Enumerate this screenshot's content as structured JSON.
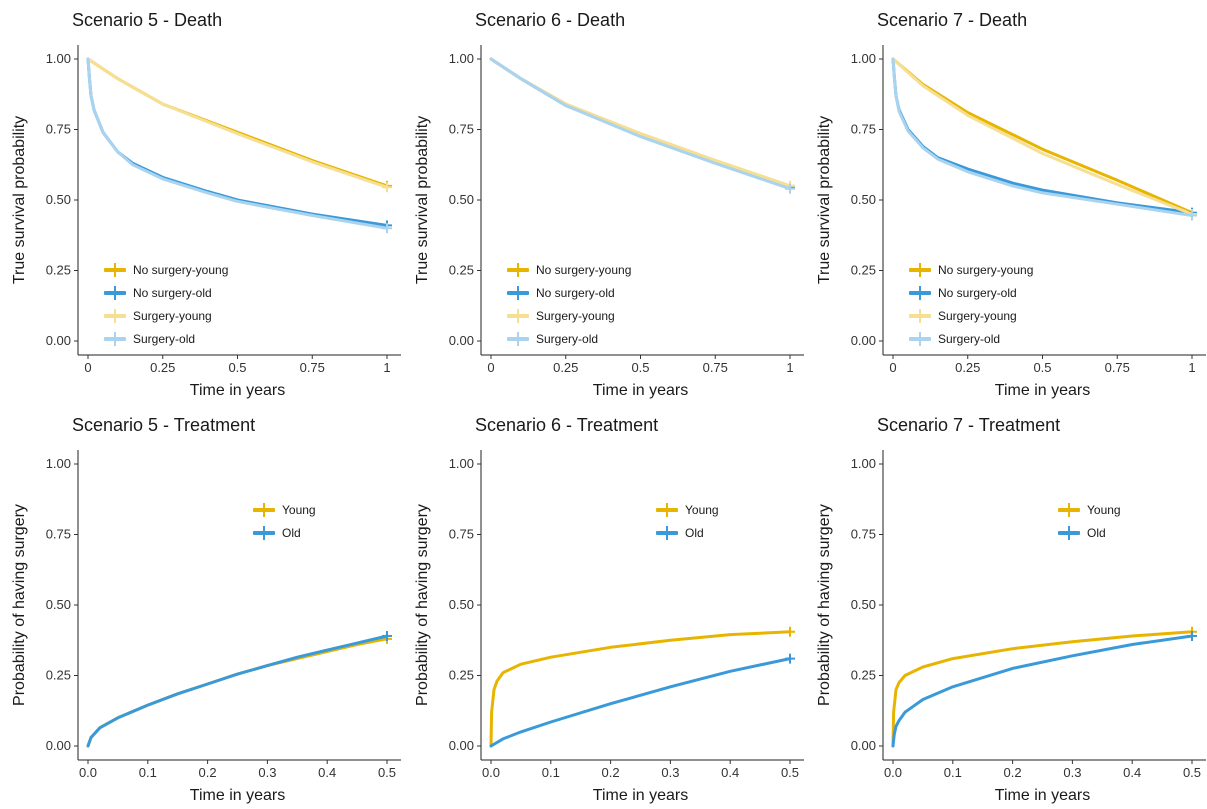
{
  "colors": {
    "no_surgery_young": "#E7B400",
    "no_surgery_old": "#3A9AD9",
    "surgery_young": "#F6DF93",
    "surgery_old": "#A9D3EE",
    "young": "#E7B400",
    "old": "#3A9AD9"
  },
  "chart_data": [
    {
      "type": "line",
      "title": "Scenario 5 - Death",
      "xlabel": "Time in years",
      "ylabel": "True survival probability",
      "xlim": [
        0,
        1
      ],
      "ylim": [
        0,
        1
      ],
      "xticks": [
        0,
        0.25,
        0.5,
        0.75,
        1
      ],
      "xtick_labels": [
        "0",
        "0.25",
        "0.5",
        "0.75",
        "1"
      ],
      "yticks": [
        0,
        0.25,
        0.5,
        0.75,
        1
      ],
      "ytick_labels": [
        "0.00",
        "0.25",
        "0.50",
        "0.75",
        "1.00"
      ],
      "legend_position": "bottom-left",
      "grid": false,
      "series": [
        {
          "name": "No surgery-young",
          "color_key": "no_surgery_young",
          "x": [
            0,
            0.1,
            0.25,
            0.5,
            0.75,
            1
          ],
          "y": [
            1.0,
            0.93,
            0.84,
            0.74,
            0.64,
            0.55
          ]
        },
        {
          "name": "No surgery-old",
          "color_key": "no_surgery_old",
          "x": [
            0,
            0.005,
            0.01,
            0.02,
            0.05,
            0.1,
            0.15,
            0.25,
            0.4,
            0.5,
            0.6,
            0.75,
            1
          ],
          "y": [
            1.0,
            0.93,
            0.87,
            0.82,
            0.74,
            0.67,
            0.63,
            0.58,
            0.53,
            0.5,
            0.48,
            0.45,
            0.41
          ]
        },
        {
          "name": "Surgery-young",
          "color_key": "surgery_young",
          "x": [
            0,
            0.1,
            0.25,
            0.5,
            0.75,
            1
          ],
          "y": [
            1.0,
            0.93,
            0.84,
            0.735,
            0.635,
            0.545
          ]
        },
        {
          "name": "Surgery-old",
          "color_key": "surgery_old",
          "x": [
            0,
            0.005,
            0.01,
            0.02,
            0.05,
            0.1,
            0.15,
            0.25,
            0.4,
            0.5,
            0.6,
            0.75,
            1
          ],
          "y": [
            1.0,
            0.93,
            0.87,
            0.82,
            0.74,
            0.67,
            0.625,
            0.575,
            0.525,
            0.495,
            0.475,
            0.445,
            0.4
          ]
        }
      ]
    },
    {
      "type": "line",
      "title": "Scenario 6 - Death",
      "xlabel": "Time in years",
      "ylabel": "True survival probability",
      "xlim": [
        0,
        1
      ],
      "ylim": [
        0,
        1
      ],
      "xticks": [
        0,
        0.25,
        0.5,
        0.75,
        1
      ],
      "xtick_labels": [
        "0",
        "0.25",
        "0.5",
        "0.75",
        "1"
      ],
      "yticks": [
        0,
        0.25,
        0.5,
        0.75,
        1
      ],
      "ytick_labels": [
        "0.00",
        "0.25",
        "0.50",
        "0.75",
        "1.00"
      ],
      "legend_position": "bottom-left",
      "grid": false,
      "series": [
        {
          "name": "No surgery-young",
          "color_key": "no_surgery_young",
          "x": [
            0,
            0.1,
            0.25,
            0.5,
            0.75,
            1
          ],
          "y": [
            1.0,
            0.93,
            0.84,
            0.735,
            0.64,
            0.55
          ]
        },
        {
          "name": "No surgery-old",
          "color_key": "no_surgery_old",
          "x": [
            0,
            0.1,
            0.25,
            0.5,
            0.75,
            1
          ],
          "y": [
            1.0,
            0.93,
            0.835,
            0.73,
            0.635,
            0.545
          ]
        },
        {
          "name": "Surgery-young",
          "color_key": "surgery_young",
          "x": [
            0,
            0.1,
            0.25,
            0.5,
            0.75,
            1
          ],
          "y": [
            1.0,
            0.93,
            0.84,
            0.735,
            0.64,
            0.55
          ]
        },
        {
          "name": "Surgery-old",
          "color_key": "surgery_old",
          "x": [
            0,
            0.1,
            0.25,
            0.5,
            0.75,
            1
          ],
          "y": [
            1.0,
            0.93,
            0.835,
            0.725,
            0.63,
            0.54
          ]
        }
      ]
    },
    {
      "type": "line",
      "title": "Scenario 7 - Death",
      "xlabel": "Time in years",
      "ylabel": "True survival probability",
      "xlim": [
        0,
        1
      ],
      "ylim": [
        0,
        1
      ],
      "xticks": [
        0,
        0.25,
        0.5,
        0.75,
        1
      ],
      "xtick_labels": [
        "0",
        "0.25",
        "0.5",
        "0.75",
        "1"
      ],
      "yticks": [
        0,
        0.25,
        0.5,
        0.75,
        1
      ],
      "ytick_labels": [
        "0.00",
        "0.25",
        "0.50",
        "0.75",
        "1.00"
      ],
      "legend_position": "bottom-left",
      "grid": false,
      "series": [
        {
          "name": "No surgery-young",
          "color_key": "no_surgery_young",
          "x": [
            0,
            0.1,
            0.25,
            0.5,
            0.75,
            1
          ],
          "y": [
            1.0,
            0.91,
            0.81,
            0.68,
            0.57,
            0.455
          ]
        },
        {
          "name": "No surgery-old",
          "color_key": "no_surgery_old",
          "x": [
            0,
            0.005,
            0.01,
            0.02,
            0.05,
            0.1,
            0.15,
            0.25,
            0.4,
            0.5,
            0.75,
            1
          ],
          "y": [
            1.0,
            0.93,
            0.87,
            0.82,
            0.75,
            0.69,
            0.65,
            0.61,
            0.56,
            0.535,
            0.49,
            0.455
          ]
        },
        {
          "name": "Surgery-young",
          "color_key": "surgery_young",
          "x": [
            0,
            0.1,
            0.25,
            0.5,
            0.75,
            1
          ],
          "y": [
            1.0,
            0.905,
            0.8,
            0.665,
            0.555,
            0.45
          ]
        },
        {
          "name": "Surgery-old",
          "color_key": "surgery_old",
          "x": [
            0,
            0.005,
            0.01,
            0.02,
            0.05,
            0.1,
            0.15,
            0.25,
            0.4,
            0.5,
            0.75,
            1
          ],
          "y": [
            1.0,
            0.93,
            0.87,
            0.815,
            0.745,
            0.685,
            0.645,
            0.6,
            0.55,
            0.525,
            0.485,
            0.445
          ]
        }
      ]
    },
    {
      "type": "line",
      "title": "Scenario 5 - Treatment",
      "xlabel": "Time in years",
      "ylabel": "Probability of  having surgery",
      "xlim": [
        0,
        0.5
      ],
      "ylim": [
        0,
        1
      ],
      "xticks": [
        0,
        0.1,
        0.2,
        0.3,
        0.4,
        0.5
      ],
      "xtick_labels": [
        "0.0",
        "0.1",
        "0.2",
        "0.3",
        "0.4",
        "0.5"
      ],
      "yticks": [
        0,
        0.25,
        0.5,
        0.75,
        1
      ],
      "ytick_labels": [
        "0.00",
        "0.25",
        "0.50",
        "0.75",
        "1.00"
      ],
      "legend_position": "top-right",
      "grid": false,
      "series": [
        {
          "name": "Young",
          "color_key": "young",
          "x": [
            0,
            0.005,
            0.02,
            0.05,
            0.1,
            0.15,
            0.2,
            0.25,
            0.3,
            0.35,
            0.4,
            0.45,
            0.5
          ],
          "y": [
            0,
            0.03,
            0.065,
            0.1,
            0.145,
            0.185,
            0.22,
            0.255,
            0.285,
            0.31,
            0.335,
            0.36,
            0.38
          ]
        },
        {
          "name": "Old",
          "color_key": "old",
          "x": [
            0,
            0.005,
            0.02,
            0.05,
            0.1,
            0.15,
            0.2,
            0.25,
            0.3,
            0.35,
            0.4,
            0.45,
            0.5
          ],
          "y": [
            0,
            0.03,
            0.065,
            0.1,
            0.145,
            0.185,
            0.22,
            0.255,
            0.285,
            0.315,
            0.34,
            0.365,
            0.39
          ]
        }
      ]
    },
    {
      "type": "line",
      "title": "Scenario 6 - Treatment",
      "xlabel": "Time in years",
      "ylabel": "Probability of  having surgery",
      "xlim": [
        0,
        0.5
      ],
      "ylim": [
        0,
        1
      ],
      "xticks": [
        0,
        0.1,
        0.2,
        0.3,
        0.4,
        0.5
      ],
      "xtick_labels": [
        "0.0",
        "0.1",
        "0.2",
        "0.3",
        "0.4",
        "0.5"
      ],
      "yticks": [
        0,
        0.25,
        0.5,
        0.75,
        1
      ],
      "ytick_labels": [
        "0.00",
        "0.25",
        "0.50",
        "0.75",
        "1.00"
      ],
      "legend_position": "top-right",
      "grid": false,
      "series": [
        {
          "name": "Young",
          "color_key": "young",
          "x": [
            0,
            0.001,
            0.005,
            0.01,
            0.02,
            0.05,
            0.1,
            0.2,
            0.3,
            0.4,
            0.5
          ],
          "y": [
            0,
            0.12,
            0.2,
            0.23,
            0.26,
            0.29,
            0.315,
            0.35,
            0.375,
            0.395,
            0.405
          ]
        },
        {
          "name": "Old",
          "color_key": "old",
          "x": [
            0,
            0.02,
            0.05,
            0.1,
            0.2,
            0.3,
            0.4,
            0.5
          ],
          "y": [
            0,
            0.025,
            0.05,
            0.085,
            0.15,
            0.21,
            0.265,
            0.31
          ]
        }
      ]
    },
    {
      "type": "line",
      "title": "Scenario 7 - Treatment",
      "xlabel": "Time in years",
      "ylabel": "Probability of  having surgery",
      "xlim": [
        0,
        0.5
      ],
      "ylim": [
        0,
        1
      ],
      "xticks": [
        0,
        0.1,
        0.2,
        0.3,
        0.4,
        0.5
      ],
      "xtick_labels": [
        "0.0",
        "0.1",
        "0.2",
        "0.3",
        "0.4",
        "0.5"
      ],
      "yticks": [
        0,
        0.25,
        0.5,
        0.75,
        1
      ],
      "ytick_labels": [
        "0.00",
        "0.25",
        "0.50",
        "0.75",
        "1.00"
      ],
      "legend_position": "top-right",
      "grid": false,
      "series": [
        {
          "name": "Young",
          "color_key": "young",
          "x": [
            0,
            0.001,
            0.005,
            0.01,
            0.02,
            0.05,
            0.1,
            0.2,
            0.3,
            0.4,
            0.5
          ],
          "y": [
            0,
            0.12,
            0.2,
            0.225,
            0.25,
            0.28,
            0.31,
            0.345,
            0.37,
            0.39,
            0.405
          ]
        },
        {
          "name": "Old",
          "color_key": "old",
          "x": [
            0,
            0.002,
            0.005,
            0.01,
            0.02,
            0.05,
            0.1,
            0.2,
            0.3,
            0.4,
            0.5
          ],
          "y": [
            0,
            0.04,
            0.07,
            0.09,
            0.12,
            0.165,
            0.21,
            0.275,
            0.32,
            0.36,
            0.39
          ]
        }
      ]
    }
  ]
}
